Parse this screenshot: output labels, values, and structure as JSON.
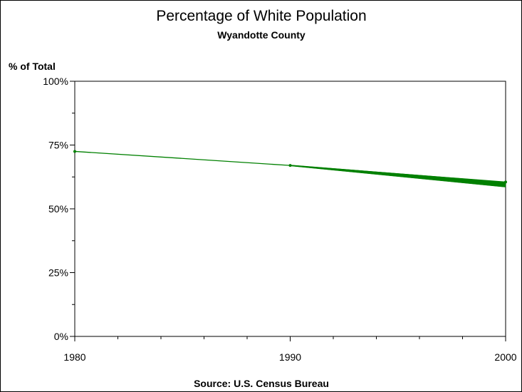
{
  "chart_data": {
    "type": "line",
    "title": "Percentage of White Population",
    "subtitle": "Wyandotte County",
    "ylabel": "% of Total",
    "xlabel": "",
    "footnote": "Source: U.S. Census Bureau",
    "xlim": [
      1980,
      2000
    ],
    "ylim": [
      0,
      100
    ],
    "x_ticks": [
      1980,
      1990,
      2000
    ],
    "x_minor_step": 2,
    "y_ticks": [
      {
        "value": 0,
        "label": "0%"
      },
      {
        "value": 25,
        "label": "25%"
      },
      {
        "value": 50,
        "label": "50%"
      },
      {
        "value": 75,
        "label": "75%"
      },
      {
        "value": 100,
        "label": "100%"
      }
    ],
    "y_minor_step": 12.5,
    "grid": false,
    "color": "#008000",
    "series": [
      {
        "x": [
          1980,
          1990,
          2000
        ],
        "values": [
          72.5,
          67.0,
          60.5
        ],
        "range_2000": [
          58.5,
          60.5
        ]
      }
    ]
  }
}
